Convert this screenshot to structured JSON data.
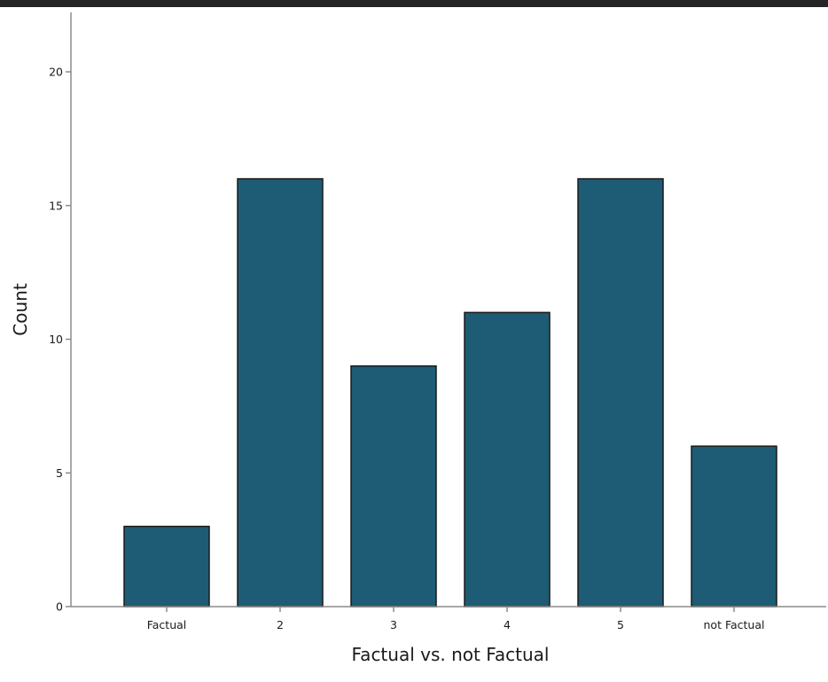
{
  "chart_data": {
    "type": "bar",
    "categories": [
      "Factual",
      "2",
      "3",
      "4",
      "5",
      "not Factual"
    ],
    "values": [
      3,
      16,
      9,
      11,
      16,
      6
    ],
    "xlabel": "Factual vs. not Factual",
    "ylabel": "Count",
    "ylim": [
      0,
      22
    ],
    "yticks": [
      0,
      5,
      10,
      15,
      20
    ],
    "grid": false,
    "bar_color": "#1d5c74",
    "bar_edge_color": "#1a1a1a"
  }
}
